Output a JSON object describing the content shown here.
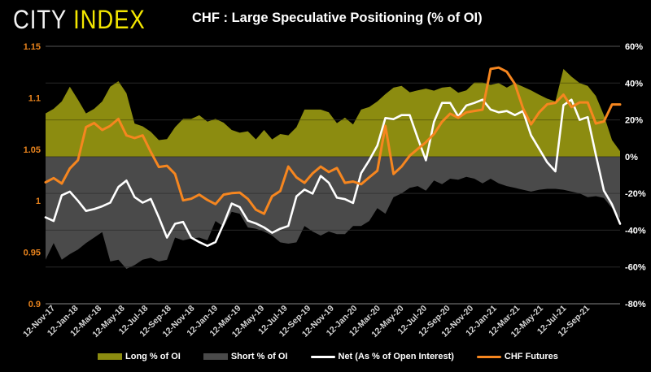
{
  "brand": {
    "city": "CITY",
    "index": "INDEX",
    "index_color": "#f3e600"
  },
  "title": "CHF : Large Speculative Positioning (% of OI)",
  "legend": {
    "items": [
      {
        "label": "Long % of OI",
        "swatch": "area",
        "color": "#8c8c10"
      },
      {
        "label": "Short % of OI",
        "swatch": "area",
        "color": "#4a4a4a"
      },
      {
        "label": "Net (As % of Open Interest)",
        "swatch": "line",
        "color": "#ffffff"
      },
      {
        "label": "CHF Futures",
        "swatch": "line",
        "color": "#f6861f"
      }
    ]
  },
  "chart_data": {
    "type": "area+line combo (weekly futures positioning)",
    "title": "CHF : Large Speculative Positioning (% of OI)",
    "left_axis": {
      "ticks": [
        "1.15",
        "1.1",
        "1.05",
        "1",
        "0.95",
        "0.9"
      ],
      "min": 0.9,
      "max": 1.15,
      "label_color": "#e8831d",
      "applies_to": "CHF Futures price"
    },
    "right_axis": {
      "ticks": [
        "60%",
        "40%",
        "20%",
        "0%",
        "-20%",
        "-40%",
        "-60%",
        "-80%"
      ],
      "min": -80,
      "max": 60,
      "label_color": "#ffffff",
      "applies_to": "% of open interest"
    },
    "x_tick_labels": [
      "12-Nov-17",
      "12-Jan-18",
      "12-Mar-18",
      "12-May-18",
      "12-Jul-18",
      "12-Sep-18",
      "12-Nov-18",
      "12-Jan-19",
      "12-Mar-19",
      "12-May-19",
      "12-Jul-19",
      "12-Sep-19",
      "12-Nov-19",
      "12-Jan-20",
      "12-Mar-20",
      "12-May-20",
      "12-Jul-20",
      "12-Sep-20",
      "12-Nov-20",
      "12-Jan-21",
      "12-Mar-21",
      "12-May-21",
      "12-Jul-21",
      "12-Sep-21"
    ],
    "x_label_color": "#d4d4d4",
    "grid": "horizontal lines at every right-axis tick",
    "legend_position": "bottom",
    "points_note": "72 points evenly spaced across the plotted date range (series values estimated from pixels)",
    "series": [
      {
        "name": "Long % of OI",
        "type": "area",
        "axis": "right",
        "color": "#8c8c10",
        "values": [
          23.5,
          26,
          30,
          38,
          31,
          23.5,
          26,
          30,
          38,
          41,
          34.5,
          18,
          16.5,
          13.5,
          9,
          9.5,
          16,
          20.5,
          20.5,
          22.5,
          19,
          20.5,
          18.5,
          14.5,
          13,
          13.8,
          9.4,
          14.5,
          9.4,
          12.3,
          11.6,
          16,
          25.6,
          25.6,
          25.6,
          24.1,
          18.2,
          21.2,
          17.5,
          25.6,
          27,
          30,
          34,
          37.5,
          38.5,
          35,
          36,
          37,
          35.9,
          37.5,
          38,
          34.8,
          36,
          40.3,
          40.3,
          39,
          40,
          37.5,
          40,
          38,
          36,
          33.7,
          31.5,
          30,
          47.7,
          43.5,
          40,
          38.5,
          33,
          22.5,
          9,
          3
        ]
      },
      {
        "name": "Short % of OI",
        "type": "area",
        "axis": "right",
        "color": "#4a4a4a",
        "values": [
          -56,
          -47,
          -56,
          -53,
          -50.5,
          -47,
          -44,
          -41,
          -57,
          -56,
          -61,
          -59,
          -56,
          -55,
          -57,
          -56,
          -44,
          -45.5,
          -44.5,
          -44,
          -45.5,
          -35,
          -38,
          -30,
          -31,
          -38.5,
          -39.2,
          -40.7,
          -42.9,
          -46.6,
          -47.3,
          -46.6,
          -37.7,
          -40.7,
          -42.9,
          -40.7,
          -42.1,
          -42.1,
          -37.7,
          -37.7,
          -35,
          -28,
          -31,
          -22,
          -20,
          -17,
          -16,
          -18.5,
          -13,
          -15,
          -12,
          -12.5,
          -11,
          -12,
          -14.5,
          -12,
          -14.5,
          -16,
          -17,
          -18,
          -19,
          -18,
          -17.5,
          -17.5,
          -18,
          -19,
          -20,
          -22,
          -21.5,
          -22.5,
          -28,
          -33.5
        ]
      },
      {
        "name": "Net (As % of Open Interest)",
        "type": "line",
        "axis": "right",
        "color": "#ffffff",
        "values": [
          -33,
          -35,
          -21,
          -19,
          -24,
          -29.5,
          -28.5,
          -27,
          -25,
          -16.5,
          -13,
          -22,
          -25,
          -23,
          -33,
          -44,
          -36.5,
          -35.5,
          -44,
          -46.5,
          -48.5,
          -46.5,
          -36.5,
          -25.5,
          -27.4,
          -34.8,
          -36.3,
          -38.5,
          -41.4,
          -39.2,
          -37.7,
          -21.6,
          -17.9,
          -20.1,
          -10.5,
          -14.2,
          -22.3,
          -23.1,
          -25.2,
          -9,
          -2,
          6,
          21,
          20.4,
          22.6,
          22.6,
          10,
          -2,
          18.9,
          29.2,
          29.2,
          21.9,
          27.8,
          29.2,
          31,
          25.6,
          24.1,
          24.8,
          22.6,
          24.8,
          11.6,
          4.2,
          -3.1,
          -8,
          28,
          31,
          20,
          21.5,
          1,
          -18.5,
          -26,
          -36.5
        ]
      },
      {
        "name": "CHF Futures",
        "type": "line",
        "axis": "left",
        "color": "#f6861f",
        "values": [
          1.018,
          1.022,
          1.0167,
          1.0314,
          1.0394,
          1.0715,
          1.0755,
          1.0688,
          1.0728,
          1.0795,
          1.0635,
          1.0609,
          1.0635,
          1.0474,
          1.0328,
          1.034,
          1.026,
          1.0004,
          1.002,
          1.006,
          1.0008,
          0.9968,
          1.006,
          1.0074,
          1.008,
          1.0018,
          0.9913,
          0.9874,
          1.0044,
          1.0095,
          1.0332,
          1.0227,
          1.0174,
          1.0266,
          1.0332,
          1.0279,
          1.0318,
          1.0174,
          1.0187,
          1.0161,
          1.0227,
          1.0292,
          1.0727,
          1.026,
          1.0333,
          1.0438,
          1.0504,
          1.0569,
          1.0648,
          1.0767,
          1.0846,
          1.0806,
          1.0859,
          1.0872,
          1.0885,
          1.128,
          1.1293,
          1.1253,
          1.1135,
          1.0898,
          1.0741,
          1.0859,
          1.0938,
          1.095,
          1.103,
          1.091,
          1.0955,
          1.0955,
          1.075,
          1.077,
          1.0935,
          1.0935
        ]
      }
    ],
    "theme": {
      "background": "#000000",
      "gridline": "#343434",
      "top_rule": "#555555",
      "bottom_rule": "#858585"
    }
  }
}
